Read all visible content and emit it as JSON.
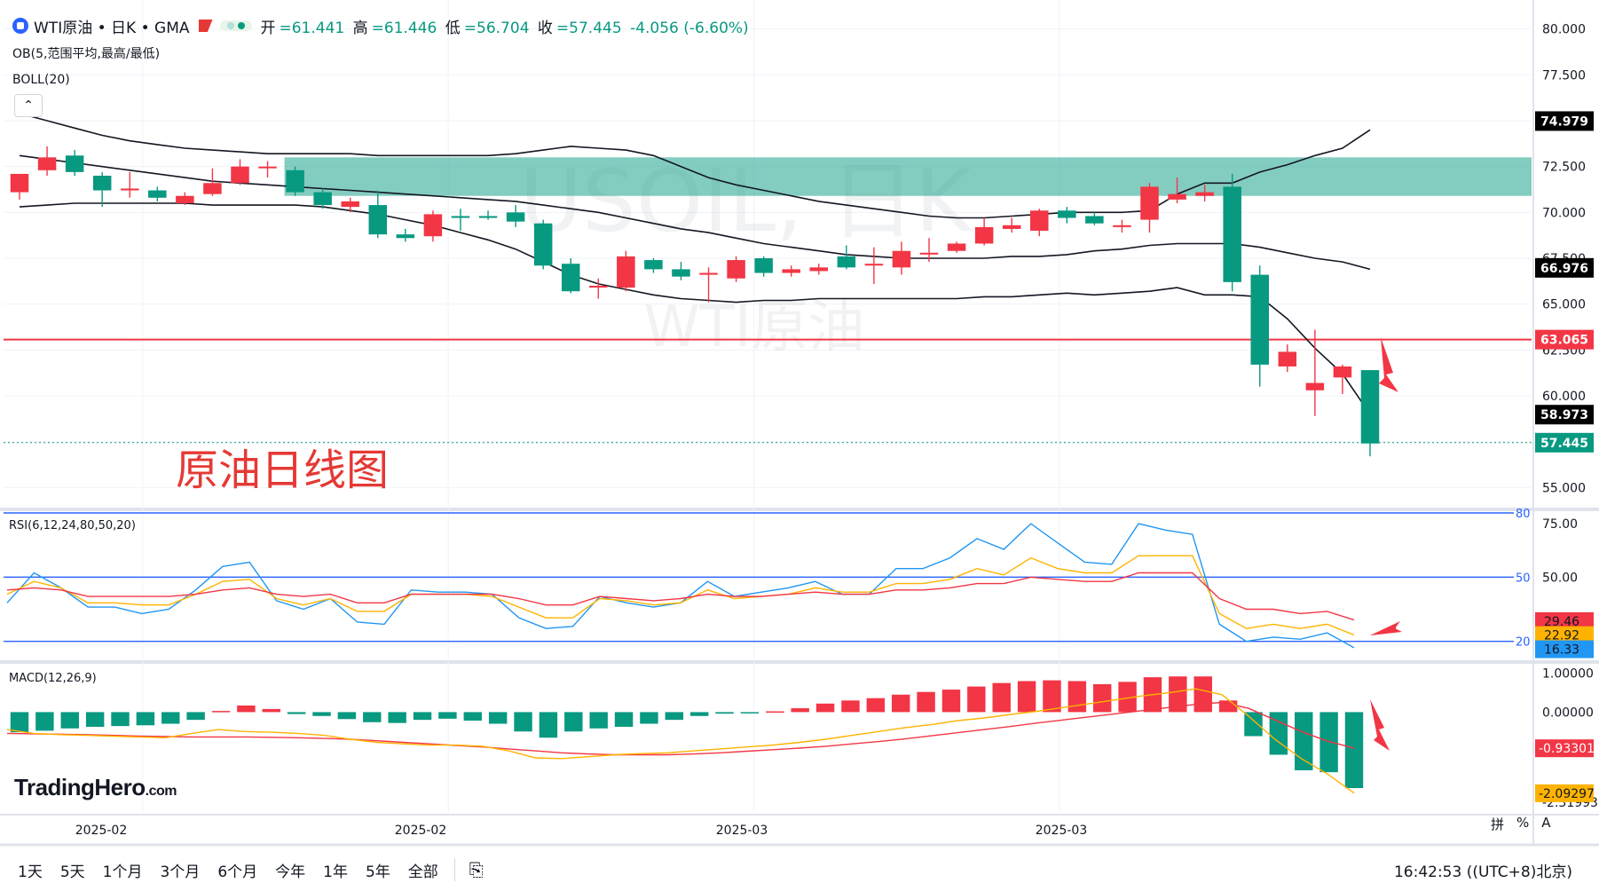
{
  "header": {
    "symbol": "WTI原油 • 日K • GMA",
    "ohlc": {
      "open_label": "开",
      "open": "=61.441",
      "high_label": "高",
      "high": "=61.446",
      "low_label": "低",
      "low": "=56.704",
      "close_label": "收",
      "close": "=57.445",
      "change": "-4.056 (-6.60%)"
    },
    "indicator_ob": "OB(5,范围平均,最高/最低)",
    "indicator_boll": "BOLL(20)",
    "collapse_glyph": "⌃"
  },
  "watermark": {
    "main": "USOIL, 日K",
    "sub": "WTI原油"
  },
  "annotation": "原油日线图",
  "logo": {
    "name": "TradingHero",
    "suffix": ".com"
  },
  "bottom_bar": {
    "timeframes": [
      "1天",
      "5天",
      "1个月",
      "3个月",
      "6个月",
      "今年",
      "1年",
      "5年",
      "全部"
    ],
    "calendar_icon": "calendar-range-icon",
    "clock": "16:42:53 ((UTC+8)北京)"
  },
  "corner_tools": [
    "拼",
    "%",
    "A"
  ],
  "colors": {
    "up": "#f23645",
    "down": "#089981",
    "zone": "#089981",
    "hline": "#f23645",
    "rsi_band": "#2962ff"
  },
  "chart_data": [
    {
      "type": "candlestick",
      "panel": "price",
      "x_tick_labels": [
        "2025-02",
        "2025-02",
        "2025-03",
        "2025-03"
      ],
      "ylim": [
        54,
        81
      ],
      "y_ticks": [
        80.0,
        77.5,
        75.0,
        72.5,
        70.0,
        67.5,
        65.0,
        62.5,
        60.0,
        57.5,
        55.0
      ],
      "y_tick_labels": [
        "80.000",
        "77.500",
        "75.000",
        "72.500",
        "70.000",
        "67.500",
        "65.000",
        "62.500",
        "60.000",
        "57.500",
        "55.000"
      ],
      "candles": [
        {
          "o": 71.1,
          "h": 71.9,
          "l": 70.7,
          "c": 72.1
        },
        {
          "o": 72.3,
          "h": 73.6,
          "l": 72.0,
          "c": 73.0
        },
        {
          "o": 73.1,
          "h": 73.4,
          "l": 72.0,
          "c": 72.2
        },
        {
          "o": 72.0,
          "h": 72.2,
          "l": 70.3,
          "c": 71.2
        },
        {
          "o": 71.2,
          "h": 72.2,
          "l": 70.8,
          "c": 71.3
        },
        {
          "o": 71.2,
          "h": 71.4,
          "l": 70.6,
          "c": 70.8
        },
        {
          "o": 70.5,
          "h": 71.1,
          "l": 70.4,
          "c": 70.9
        },
        {
          "o": 71.0,
          "h": 72.4,
          "l": 70.9,
          "c": 71.6
        },
        {
          "o": 71.6,
          "h": 72.9,
          "l": 71.5,
          "c": 72.5
        },
        {
          "o": 72.5,
          "h": 72.8,
          "l": 71.9,
          "c": 72.5
        },
        {
          "o": 72.3,
          "h": 72.5,
          "l": 70.9,
          "c": 71.1
        },
        {
          "o": 71.1,
          "h": 71.3,
          "l": 70.2,
          "c": 70.4
        },
        {
          "o": 70.3,
          "h": 70.8,
          "l": 70.0,
          "c": 70.6
        },
        {
          "o": 70.4,
          "h": 71.2,
          "l": 68.6,
          "c": 68.8
        },
        {
          "o": 68.8,
          "h": 69.1,
          "l": 68.4,
          "c": 68.6
        },
        {
          "o": 68.7,
          "h": 70.1,
          "l": 68.4,
          "c": 69.9
        },
        {
          "o": 69.8,
          "h": 70.2,
          "l": 69.0,
          "c": 69.7
        },
        {
          "o": 69.8,
          "h": 70.1,
          "l": 69.6,
          "c": 69.7
        },
        {
          "o": 70.0,
          "h": 70.4,
          "l": 69.2,
          "c": 69.5
        },
        {
          "o": 69.4,
          "h": 69.6,
          "l": 66.9,
          "c": 67.1
        },
        {
          "o": 67.2,
          "h": 67.5,
          "l": 65.6,
          "c": 65.7
        },
        {
          "o": 65.9,
          "h": 66.4,
          "l": 65.3,
          "c": 66.0
        },
        {
          "o": 65.9,
          "h": 67.9,
          "l": 65.7,
          "c": 67.6
        },
        {
          "o": 67.4,
          "h": 67.5,
          "l": 66.7,
          "c": 66.9
        },
        {
          "o": 66.9,
          "h": 67.3,
          "l": 66.3,
          "c": 66.5
        },
        {
          "o": 66.6,
          "h": 67.0,
          "l": 65.1,
          "c": 66.7
        },
        {
          "o": 66.4,
          "h": 67.6,
          "l": 66.2,
          "c": 67.4
        },
        {
          "o": 67.5,
          "h": 67.6,
          "l": 66.5,
          "c": 66.7
        },
        {
          "o": 66.7,
          "h": 67.1,
          "l": 66.5,
          "c": 66.9
        },
        {
          "o": 66.8,
          "h": 67.2,
          "l": 66.6,
          "c": 67.0
        },
        {
          "o": 67.6,
          "h": 68.2,
          "l": 66.9,
          "c": 67.0
        },
        {
          "o": 67.1,
          "h": 68.1,
          "l": 66.1,
          "c": 67.2
        },
        {
          "o": 67.0,
          "h": 68.4,
          "l": 66.6,
          "c": 67.9
        },
        {
          "o": 67.8,
          "h": 68.6,
          "l": 67.3,
          "c": 67.8
        },
        {
          "o": 67.9,
          "h": 68.4,
          "l": 67.8,
          "c": 68.3
        },
        {
          "o": 68.3,
          "h": 69.7,
          "l": 68.2,
          "c": 69.2
        },
        {
          "o": 69.1,
          "h": 69.7,
          "l": 68.9,
          "c": 69.3
        },
        {
          "o": 69.0,
          "h": 70.2,
          "l": 68.7,
          "c": 70.1
        },
        {
          "o": 70.1,
          "h": 70.3,
          "l": 69.4,
          "c": 69.7
        },
        {
          "o": 69.8,
          "h": 70.0,
          "l": 69.3,
          "c": 69.4
        },
        {
          "o": 69.2,
          "h": 69.6,
          "l": 68.9,
          "c": 69.3
        },
        {
          "o": 69.6,
          "h": 71.6,
          "l": 68.9,
          "c": 71.4
        },
        {
          "o": 70.7,
          "h": 71.9,
          "l": 70.5,
          "c": 71.0
        },
        {
          "o": 70.9,
          "h": 71.5,
          "l": 70.6,
          "c": 71.1
        },
        {
          "o": 71.4,
          "h": 72.1,
          "l": 65.7,
          "c": 66.2
        },
        {
          "o": 66.6,
          "h": 67.1,
          "l": 60.5,
          "c": 61.7
        },
        {
          "o": 61.6,
          "h": 62.8,
          "l": 61.3,
          "c": 62.4
        },
        {
          "o": 60.3,
          "h": 63.6,
          "l": 58.9,
          "c": 60.7
        },
        {
          "o": 61.0,
          "h": 61.7,
          "l": 60.1,
          "c": 61.6
        },
        {
          "o": 61.4,
          "h": 61.4,
          "l": 56.7,
          "c": 57.4
        }
      ],
      "boll_upper": [
        75.4,
        75.0,
        74.6,
        74.2,
        73.9,
        73.7,
        73.5,
        73.4,
        73.3,
        73.2,
        73.2,
        73.2,
        73.2,
        73.1,
        73.1,
        73.1,
        73.1,
        73.1,
        73.2,
        73.4,
        73.6,
        73.5,
        73.4,
        73.1,
        72.5,
        71.9,
        71.5,
        71.2,
        70.9,
        70.6,
        70.4,
        70.2,
        70.0,
        69.8,
        69.7,
        69.7,
        69.8,
        69.9,
        70.0,
        70.0,
        70.0,
        70.1,
        71.0,
        71.6,
        71.6,
        72.2,
        72.6,
        73.1,
        73.5,
        74.5
      ],
      "boll_mid": [
        73.1,
        72.9,
        72.7,
        72.5,
        72.3,
        72.1,
        71.9,
        71.7,
        71.6,
        71.5,
        71.4,
        71.3,
        71.2,
        71.1,
        71.0,
        70.9,
        70.8,
        70.7,
        70.6,
        70.4,
        70.2,
        70.0,
        69.7,
        69.4,
        69.1,
        68.9,
        68.6,
        68.3,
        68.1,
        67.9,
        67.7,
        67.6,
        67.5,
        67.5,
        67.5,
        67.5,
        67.6,
        67.6,
        67.7,
        67.9,
        68.0,
        68.2,
        68.3,
        68.3,
        68.3,
        68.1,
        67.8,
        67.5,
        67.3,
        66.9
      ],
      "boll_lower": [
        70.3,
        70.4,
        70.5,
        70.5,
        70.5,
        70.5,
        70.5,
        70.4,
        70.4,
        70.4,
        70.4,
        70.3,
        70.1,
        69.9,
        69.6,
        69.3,
        68.9,
        68.5,
        68.0,
        67.3,
        66.6,
        66.1,
        65.8,
        65.5,
        65.3,
        65.2,
        65.1,
        65.2,
        65.2,
        65.3,
        65.3,
        65.3,
        65.3,
        65.3,
        65.3,
        65.4,
        65.4,
        65.5,
        65.6,
        65.5,
        65.6,
        65.7,
        65.9,
        65.5,
        65.5,
        65.4,
        64.2,
        62.6,
        61.2,
        59.0
      ],
      "demand_zone": {
        "y_top": 73.0,
        "y_bottom": 70.9,
        "from_index": 10
      },
      "hline": 63.065,
      "price_labels": [
        {
          "value": 74.979,
          "text": "74.979",
          "bg": "#000000"
        },
        {
          "value": 66.976,
          "text": "66.976",
          "bg": "#000000"
        },
        {
          "value": 63.065,
          "text": "63.065",
          "bg": "#f23645"
        },
        {
          "value": 58.973,
          "text": "58.973",
          "bg": "#000000"
        },
        {
          "value": 57.445,
          "text": "57.445",
          "bg": "#089981"
        }
      ]
    },
    {
      "type": "line",
      "panel": "rsi",
      "title": "RSI(6,12,24,80,50,20)",
      "ylim": [
        12,
        80
      ],
      "bands": [
        80,
        50,
        20
      ],
      "band_labels": [
        "80",
        "50",
        "20"
      ],
      "y_ticks": [
        75,
        50
      ],
      "y_tick_labels": [
        "75.00",
        "50.00"
      ],
      "series": [
        {
          "color": "#2196f3",
          "values": [
            38,
            52,
            45,
            36,
            36,
            33,
            35,
            44,
            55,
            57,
            39,
            35,
            40,
            29,
            28,
            44,
            43,
            43,
            42,
            31,
            26,
            27,
            41,
            38,
            36,
            38,
            48,
            41,
            43,
            45,
            48,
            42,
            42,
            54,
            54,
            59,
            68,
            63,
            75,
            66,
            57,
            56,
            75,
            72,
            70,
            28,
            20,
            22,
            21,
            24,
            17
          ]
        },
        {
          "color": "#ffb300",
          "values": [
            42,
            48,
            45,
            38,
            38,
            37,
            37,
            42,
            48,
            49,
            40,
            37,
            40,
            34,
            34,
            42,
            42,
            42,
            41,
            36,
            31,
            31,
            40,
            39,
            37,
            38,
            44,
            40,
            41,
            42,
            45,
            43,
            43,
            47,
            47,
            49,
            54,
            51,
            59,
            54,
            52,
            52,
            60,
            60,
            60,
            33,
            26,
            28,
            26,
            28,
            23
          ]
        },
        {
          "color": "#f23645",
          "values": [
            44,
            45,
            44,
            41,
            41,
            41,
            41,
            42,
            44,
            45,
            42,
            41,
            42,
            38,
            38,
            42,
            42,
            42,
            42,
            40,
            37,
            37,
            41,
            40,
            39,
            40,
            42,
            41,
            41,
            42,
            43,
            42,
            42,
            44,
            44,
            45,
            47,
            47,
            50,
            49,
            48,
            48,
            52,
            52,
            52,
            40,
            35,
            35,
            33,
            34,
            30
          ]
        }
      ],
      "value_labels": [
        {
          "value": 29.46,
          "text": "29.46",
          "bg": "#f23645"
        },
        {
          "value": 22.92,
          "text": "22.92",
          "bg": "#ffb300"
        },
        {
          "value": 16.33,
          "text": "16.33",
          "bg": "#2196f3"
        }
      ]
    },
    {
      "type": "bar",
      "panel": "macd",
      "title": "MACD(12,26,9)",
      "ylim": [
        -2.6,
        1.2
      ],
      "y_ticks": [
        1.0,
        0.0,
        -2.31993
      ],
      "y_tick_labels": [
        "1.00000",
        "0.00000",
        "-2.31993"
      ],
      "histogram": [
        -0.52,
        -0.48,
        -0.42,
        -0.38,
        -0.36,
        -0.34,
        -0.3,
        -0.2,
        0.03,
        0.17,
        0.08,
        -0.05,
        -0.1,
        -0.18,
        -0.26,
        -0.28,
        -0.2,
        -0.17,
        -0.22,
        -0.3,
        -0.5,
        -0.66,
        -0.5,
        -0.42,
        -0.38,
        -0.3,
        -0.2,
        -0.1,
        -0.04,
        -0.02,
        0.02,
        0.1,
        0.22,
        0.3,
        0.36,
        0.45,
        0.52,
        0.58,
        0.66,
        0.75,
        0.8,
        0.82,
        0.8,
        0.72,
        0.78,
        0.9,
        0.92,
        0.92,
        0.3,
        -0.62,
        -1.1,
        -1.5,
        -1.55,
        -1.96
      ],
      "macd_line": [
        -0.45,
        -0.55,
        -0.58,
        -0.6,
        -0.62,
        -0.64,
        -0.66,
        -0.55,
        -0.45,
        -0.5,
        -0.52,
        -0.55,
        -0.6,
        -0.7,
        -0.78,
        -0.82,
        -0.85,
        -0.85,
        -0.88,
        -1.0,
        -1.18,
        -1.2,
        -1.15,
        -1.1,
        -1.07,
        -1.05,
        -1.0,
        -0.95,
        -0.9,
        -0.85,
        -0.78,
        -0.7,
        -0.6,
        -0.5,
        -0.4,
        -0.32,
        -0.22,
        -0.15,
        -0.06,
        0.02,
        0.12,
        0.22,
        0.32,
        0.42,
        0.5,
        0.6,
        0.45,
        -0.1,
        -0.7,
        -1.2,
        -1.6,
        -2.09
      ],
      "signal_line": [
        -0.55,
        -0.56,
        -0.57,
        -0.58,
        -0.6,
        -0.62,
        -0.63,
        -0.64,
        -0.64,
        -0.64,
        -0.65,
        -0.66,
        -0.68,
        -0.7,
        -0.74,
        -0.78,
        -0.82,
        -0.86,
        -0.9,
        -0.95,
        -1.0,
        -1.05,
        -1.08,
        -1.1,
        -1.1,
        -1.1,
        -1.08,
        -1.05,
        -1.01,
        -0.97,
        -0.93,
        -0.88,
        -0.82,
        -0.76,
        -0.69,
        -0.61,
        -0.53,
        -0.45,
        -0.37,
        -0.28,
        -0.2,
        -0.12,
        -0.04,
        0.04,
        0.12,
        0.2,
        0.25,
        0.1,
        -0.2,
        -0.5,
        -0.75,
        -0.93
      ],
      "value_labels": [
        {
          "value": -0.93301,
          "text": "-0.93301",
          "bg": "#f23645"
        },
        {
          "value": -2.09297,
          "text": "-2.09297",
          "bg": "#ffb300"
        }
      ]
    }
  ]
}
